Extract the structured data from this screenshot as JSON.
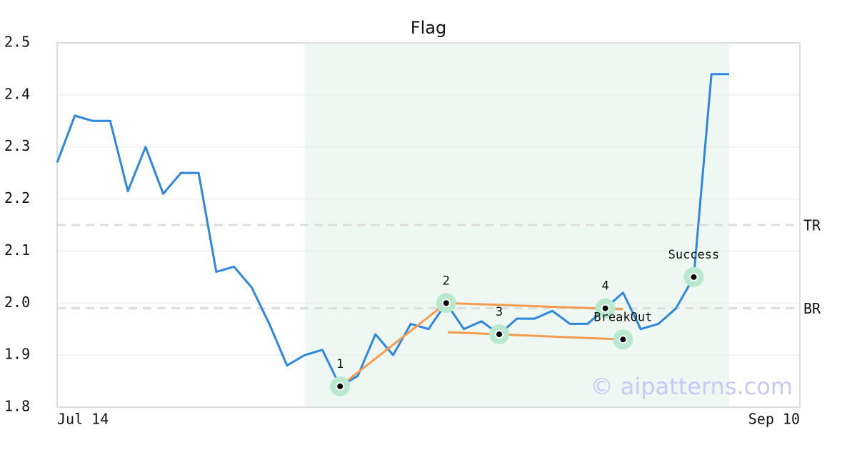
{
  "chart_data": {
    "type": "line",
    "title": "Flag",
    "x": [
      0,
      1,
      2,
      3,
      4,
      5,
      6,
      7,
      8,
      9,
      10,
      11,
      12,
      13,
      14,
      15,
      16,
      17,
      18,
      19,
      20,
      21,
      22,
      23,
      24,
      25,
      26,
      27,
      28,
      29,
      30,
      31,
      32,
      33,
      34,
      35,
      36,
      37,
      38
    ],
    "series": [
      {
        "color": "#2e86de",
        "values": [
          2.27,
          2.36,
          2.35,
          2.35,
          2.215,
          2.3,
          2.21,
          2.25,
          2.25,
          2.06,
          2.07,
          2.03,
          1.96,
          1.88,
          1.9,
          1.91,
          1.84,
          1.86,
          1.94,
          1.9,
          1.96,
          1.95,
          2.0,
          1.95,
          1.965,
          1.94,
          1.97,
          1.97,
          1.985,
          1.96,
          1.96,
          1.99,
          2.02,
          1.95,
          1.96,
          1.99,
          2.05,
          2.44,
          2.44
        ]
      }
    ],
    "xlim": [
      0,
      42
    ],
    "xticks": [
      {
        "value": 0,
        "label": "Jul 14"
      },
      {
        "value": 42,
        "label": "Sep 10"
      }
    ],
    "ylim": [
      1.8,
      2.5
    ],
    "yticks": [
      1.8,
      1.9,
      {
        "value": 2,
        "label": "2.0"
      },
      2.1,
      2.2,
      2.3,
      2.4,
      2.5
    ],
    "grid": true,
    "highlight": [
      14,
      38
    ],
    "reference_lines": [
      {
        "label": "TR",
        "value": 2.15
      },
      {
        "label": "BR",
        "value": 1.99
      }
    ],
    "trend_lines": [
      [
        [
          16,
          1.84
        ],
        [
          22,
          2.0
        ]
      ],
      [
        [
          22,
          2.0
        ],
        [
          32,
          1.988
        ]
      ],
      [
        [
          22.1,
          1.944
        ],
        [
          32,
          1.93
        ]
      ]
    ],
    "points": [
      {
        "label": "1",
        "x": 16,
        "y": 1.84
      },
      {
        "label": "2",
        "x": 22,
        "y": 2.0
      },
      {
        "label": "3",
        "x": 25,
        "y": 1.94
      },
      {
        "label": "4",
        "x": 31,
        "y": 1.99
      },
      {
        "label": "BreakOut",
        "x": 32,
        "y": 1.93
      },
      {
        "label": "Success",
        "x": 36,
        "y": 2.05
      }
    ],
    "watermark": "© aipatterns.com"
  }
}
